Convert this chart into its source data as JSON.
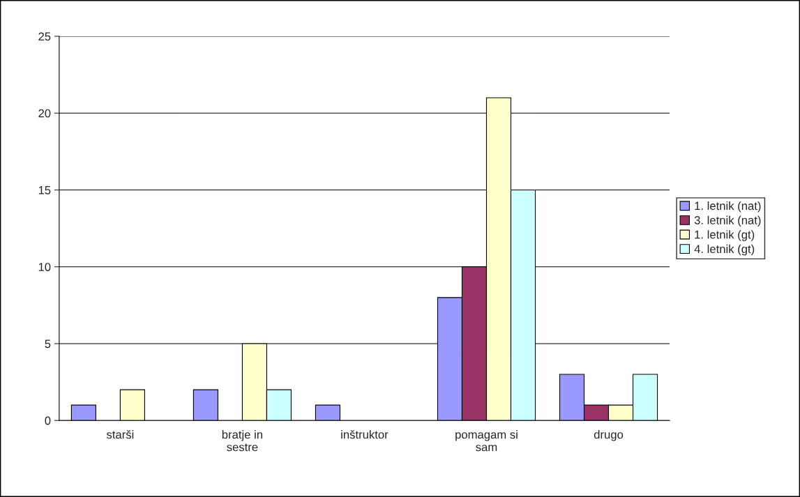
{
  "chart_data": {
    "type": "bar",
    "categories": [
      "starši",
      "bratje in sestre",
      "inštruktor",
      "pomagam si sam",
      "drugo"
    ],
    "series": [
      {
        "name": "1. letnik (nat)",
        "color": "#9999ff",
        "values": [
          1,
          2,
          1,
          8,
          3
        ]
      },
      {
        "name": "3. letnik (nat)",
        "color": "#993366",
        "values": [
          0,
          0,
          0,
          10,
          1
        ]
      },
      {
        "name": "1. letnik (gt)",
        "color": "#ffffcc",
        "values": [
          2,
          5,
          0,
          21,
          1
        ]
      },
      {
        "name": "4. letnik (gt)",
        "color": "#ccffff",
        "values": [
          0,
          2,
          0,
          15,
          3
        ]
      }
    ],
    "ylim": [
      0,
      25
    ],
    "yticks": [
      0,
      5,
      10,
      15,
      20,
      25
    ],
    "grid": "y",
    "legend": "right"
  }
}
